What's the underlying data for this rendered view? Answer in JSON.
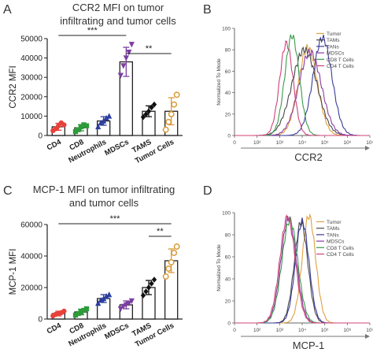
{
  "colors": {
    "cd4": "#e8413a",
    "cd8": "#2e9a3a",
    "neutrophils": "#2c3e9e",
    "mdscs": "#7a3fa0",
    "tams": "#111111",
    "tumor": "#d99a3a",
    "flow_tumor": "#e0a040",
    "flow_tams": "#4a4a4a",
    "flow_tans": "#3a3a9a",
    "flow_mdscs": "#8a3aa0",
    "flow_cd8": "#3a9a4a",
    "flow_cd4": "#d0407a"
  },
  "panels": {
    "A": {
      "letter": "A",
      "title_line1": "CCR2 MFI on tumor",
      "title_line2": "infiltrating and tumor cells"
    },
    "B": {
      "letter": "B"
    },
    "C": {
      "letter": "C",
      "title_line1": "MCP-1 MFI on tumor infiltrating",
      "title_line2": "and tumor cells"
    },
    "D": {
      "letter": "D"
    }
  },
  "chart_data": [
    {
      "type": "bar",
      "panel": "A",
      "title": "CCR2 MFI on tumor infiltrating and tumor cells",
      "ylabel": "CCR2 MFI",
      "ylim": [
        0,
        50000
      ],
      "yticks": [
        "0",
        "10000",
        "20000",
        "30000",
        "40000",
        "50000"
      ],
      "categories": [
        "CD4",
        "CD8",
        "Neutrophils",
        "MDSCs",
        "TAMS",
        "Tumor Cells"
      ],
      "values": [
        4500,
        4000,
        7500,
        38000,
        12500,
        12500
      ],
      "errors": [
        1800,
        1600,
        2200,
        7500,
        2800,
        7000
      ],
      "points": [
        [
          2500,
          3500,
          5000,
          6500,
          5500
        ],
        [
          2000,
          3000,
          4500,
          5500,
          5000
        ],
        [
          4500,
          6500,
          7500,
          9000,
          10000
        ],
        [
          31000,
          36000,
          40000,
          43000,
          47000
        ],
        [
          9500,
          11000,
          12500,
          14500,
          16000
        ],
        [
          3000,
          7000,
          11000,
          16000,
          21000
        ]
      ],
      "markers": [
        "circle",
        "square",
        "triangle",
        "triangle-down",
        "diamond",
        "circle-open"
      ],
      "brackets": [
        {
          "from": 0,
          "to": 3,
          "label": "***"
        },
        {
          "from": 3,
          "to": 5,
          "label": "**"
        }
      ]
    },
    {
      "type": "line",
      "panel": "B",
      "title": "",
      "xlabel": "CCR2",
      "ylabel": "Normalized To Mode",
      "xscale": "log",
      "xlim": [
        10,
        10000000
      ],
      "ylim": [
        0,
        100
      ],
      "xticks": [
        "0",
        "10²",
        "10³",
        "10⁴",
        "10⁵",
        "10⁶",
        "10⁷"
      ],
      "yticks": [
        "0",
        "20",
        "40",
        "60",
        "80",
        "100"
      ],
      "legend_position": "top-right",
      "series": [
        {
          "name": "Tumor",
          "peak": 4.25,
          "width": 0.42,
          "height": 82
        },
        {
          "name": "TAMs",
          "peak": 4.1,
          "width": 0.55,
          "height": 80
        },
        {
          "name": "TANs",
          "peak": 4.9,
          "width": 0.42,
          "height": 91
        },
        {
          "name": "MDSCs",
          "peak": 4.35,
          "width": 0.5,
          "height": 78
        },
        {
          "name": "CD8 T Cells",
          "peak": 3.55,
          "width": 0.32,
          "height": 93
        },
        {
          "name": "CD4 T Cells",
          "peak": 3.3,
          "width": 0.3,
          "height": 86
        }
      ]
    },
    {
      "type": "bar",
      "panel": "C",
      "title": "MCP-1 MFI on tumor infiltrating and tumor cells",
      "ylabel": "MCP-1 MFI",
      "ylim": [
        0,
        60000
      ],
      "yticks": [
        "0",
        "20000",
        "40000",
        "60000"
      ],
      "categories": [
        "CD4",
        "CD8",
        "Neutrophils",
        "MDSCs",
        "TAMS",
        "Tumor Cells"
      ],
      "values": [
        3500,
        4500,
        13000,
        9000,
        20000,
        37000
      ],
      "errors": [
        1500,
        1800,
        2500,
        2500,
        4500,
        7500
      ],
      "points": [
        [
          2000,
          3000,
          3500,
          4000,
          5000
        ],
        [
          2500,
          3500,
          4500,
          5500,
          6500
        ],
        [
          10000,
          12000,
          13000,
          14500,
          15500
        ],
        [
          6500,
          8000,
          9000,
          10000,
          11500
        ],
        [
          15000,
          17500,
          20000,
          22500,
          25000
        ],
        [
          27000,
          32000,
          36000,
          42000,
          46000
        ]
      ],
      "markers": [
        "circle",
        "square",
        "triangle",
        "triangle-down",
        "diamond",
        "circle-open"
      ],
      "brackets": [
        {
          "from": 0,
          "to": 5,
          "label": "***"
        },
        {
          "from": 4,
          "to": 5,
          "label": "**"
        }
      ]
    },
    {
      "type": "line",
      "panel": "D",
      "title": "",
      "xlabel": "MCP-1",
      "ylabel": "Normalized To Mode",
      "xscale": "log",
      "xlim": [
        10,
        10000000
      ],
      "ylim": [
        0,
        100
      ],
      "xticks": [
        "0",
        "10²",
        "10³",
        "10⁴",
        "10⁵",
        "10⁶",
        "10⁷"
      ],
      "yticks": [
        "0",
        "20",
        "40",
        "60",
        "80",
        "100"
      ],
      "legend_position": "top-right",
      "series": [
        {
          "name": "Tumor",
          "peak": 4.3,
          "width": 0.3,
          "height": 97
        },
        {
          "name": "TAMs",
          "peak": 3.95,
          "width": 0.3,
          "height": 91
        },
        {
          "name": "TANs",
          "peak": 4.0,
          "width": 0.3,
          "height": 92
        },
        {
          "name": "MDSCs",
          "peak": 3.4,
          "width": 0.34,
          "height": 95
        },
        {
          "name": "CD8 T Cells",
          "peak": 3.45,
          "width": 0.35,
          "height": 93
        },
        {
          "name": "CD4 T Cells",
          "peak": 3.35,
          "width": 0.34,
          "height": 96
        }
      ]
    }
  ]
}
